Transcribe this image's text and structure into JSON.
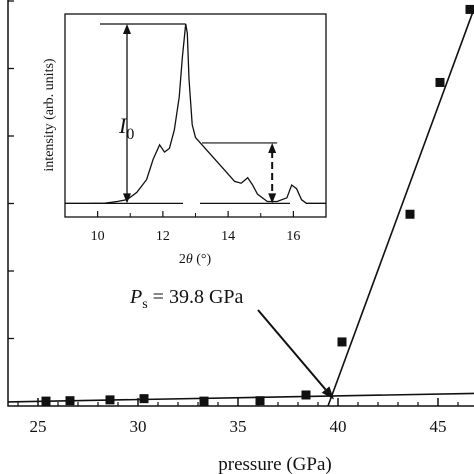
{
  "chart_data": [
    {
      "type": "scatter",
      "xlabel": "pressure (GPa)",
      "ylabel": "",
      "xlim": [
        23.5,
        47
      ],
      "ylim": [
        0,
        1
      ],
      "x_ticks": [
        25,
        30,
        35,
        40,
        45
      ],
      "grid": false,
      "series": [
        {
          "marker": "square",
          "color": "#111111",
          "x": [
            25.4,
            26.6,
            28.6,
            30.3,
            33.3,
            36.1,
            38.4,
            40.2,
            43.6,
            45.1,
            46.6
          ],
          "y": [
            0.012,
            0.013,
            0.015,
            0.018,
            0.012,
            0.013,
            0.027,
            0.157,
            0.47,
            0.793,
            0.972
          ]
        }
      ],
      "fit_lines": [
        {
          "x": [
            23.5,
            47
          ],
          "y": [
            0.01,
            0.031
          ]
        },
        {
          "x": [
            39.5,
            47
          ],
          "y": [
            0.0,
            1.0
          ]
        }
      ],
      "annotation": {
        "symbol": "P",
        "subscript": "s",
        "text": " = 39.8 GPa",
        "points_to": [
          39.8,
          0.016
        ]
      }
    },
    {
      "type": "line",
      "panel": "inset",
      "xlabel_prefix": "2",
      "xlabel_symbol": "θ",
      "xlabel_suffix": " (°)",
      "ylabel": "intensity (arb. units)",
      "xlim": [
        9.0,
        17.0
      ],
      "ylim": [
        0,
        1.0
      ],
      "x_ticks": [
        10,
        12,
        14,
        16
      ],
      "series": [
        {
          "color": "#111111",
          "x": [
            9.0,
            9.4,
            9.8,
            10.2,
            10.6,
            10.9,
            11.2,
            11.5,
            11.7,
            11.9,
            12.05,
            12.2,
            12.35,
            12.5,
            12.6,
            12.7,
            12.75,
            12.8,
            12.9,
            13.0,
            13.2,
            13.5,
            13.9,
            14.2,
            14.4,
            14.6,
            14.75,
            14.9,
            15.2,
            15.5,
            15.8,
            15.95,
            16.1,
            16.25,
            16.4,
            16.8,
            17.0
          ],
          "y": [
            0.02,
            0.02,
            0.02,
            0.02,
            0.03,
            0.04,
            0.08,
            0.15,
            0.26,
            0.34,
            0.3,
            0.32,
            0.42,
            0.6,
            0.82,
            1.0,
            0.95,
            0.7,
            0.45,
            0.38,
            0.34,
            0.28,
            0.2,
            0.14,
            0.13,
            0.16,
            0.12,
            0.07,
            0.03,
            0.03,
            0.05,
            0.12,
            0.1,
            0.04,
            0.02,
            0.02,
            0.02
          ]
        }
      ],
      "annotation_label_main": "I",
      "annotation_label_sub": "0",
      "reference_levels": {
        "baseline": 0.02,
        "peak": 1.0,
        "shoulder": 0.35,
        "peak_x": 12.7,
        "marker_x": 15.35
      }
    }
  ]
}
